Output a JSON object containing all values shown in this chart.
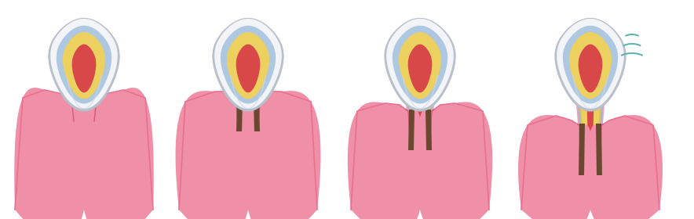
{
  "background": "#ffffff",
  "col_enamel_gray": "#b8c0cc",
  "col_enamel_white": "#f2f4f8",
  "col_enamel_blue": "#adc8e0",
  "col_dentin": "#ecd060",
  "col_pulp": "#d84848",
  "col_gum_light": "#f090a8",
  "col_gum_mid": "#e87090",
  "col_gum_dark": "#d85878",
  "col_bone": "#c8c8cc",
  "col_bone_line": "#a8a8b8",
  "col_tartar": "#6a4830",
  "col_cementum": "#e8c050",
  "col_pdl_blue": "#98bcd8",
  "col_pdl_pink": "#f0a0b8",
  "col_teal": "#58b0b0",
  "centers": [
    107,
    316,
    535,
    752
  ],
  "figsize": [
    8.84,
    2.8
  ],
  "dpi": 100
}
